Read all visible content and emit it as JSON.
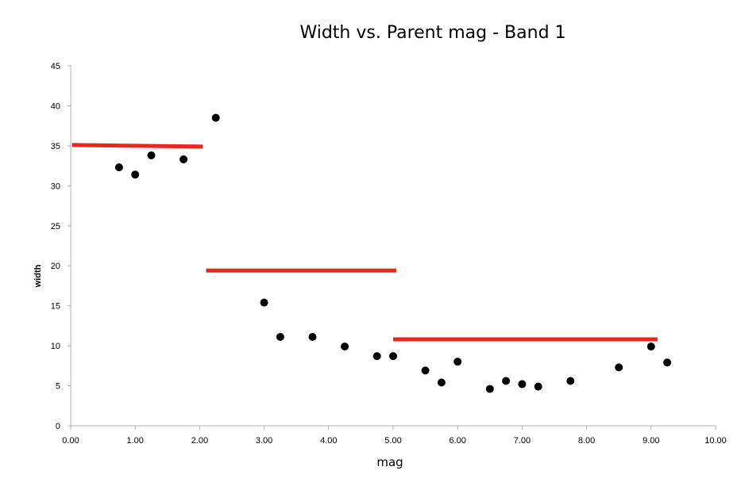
{
  "chart_data": {
    "type": "scatter",
    "title": "Width vs. Parent mag - Band 1",
    "xlabel": "mag",
    "ylabel": "width",
    "xlim": [
      0,
      10
    ],
    "ylim": [
      0,
      45
    ],
    "x_ticks": [
      "0.00",
      "1.00",
      "2.00",
      "3.00",
      "4.00",
      "5.00",
      "6.00",
      "7.00",
      "8.00",
      "9.00",
      "10.00"
    ],
    "y_ticks": [
      "0",
      "5",
      "10",
      "15",
      "20",
      "25",
      "30",
      "35",
      "40",
      "45"
    ],
    "grid": false,
    "legend": "none",
    "point_color": "#000000",
    "line_color": "#e8281e",
    "points": [
      {
        "x": 0.75,
        "y": 32.3
      },
      {
        "x": 1.0,
        "y": 31.4
      },
      {
        "x": 1.25,
        "y": 33.8
      },
      {
        "x": 1.75,
        "y": 33.3
      },
      {
        "x": 2.25,
        "y": 38.5
      },
      {
        "x": 3.0,
        "y": 15.4
      },
      {
        "x": 3.25,
        "y": 11.1
      },
      {
        "x": 3.75,
        "y": 11.1
      },
      {
        "x": 4.25,
        "y": 9.9
      },
      {
        "x": 4.75,
        "y": 8.7
      },
      {
        "x": 5.0,
        "y": 8.7
      },
      {
        "x": 5.5,
        "y": 6.9
      },
      {
        "x": 5.75,
        "y": 5.4
      },
      {
        "x": 6.0,
        "y": 8.0
      },
      {
        "x": 6.5,
        "y": 4.6
      },
      {
        "x": 6.75,
        "y": 5.6
      },
      {
        "x": 7.0,
        "y": 5.2
      },
      {
        "x": 7.25,
        "y": 4.9
      },
      {
        "x": 7.75,
        "y": 5.6
      },
      {
        "x": 8.5,
        "y": 7.3
      },
      {
        "x": 9.0,
        "y": 9.9
      },
      {
        "x": 9.25,
        "y": 7.9
      }
    ],
    "segments": [
      {
        "x1": 0.02,
        "y1": 35.1,
        "x2": 2.05,
        "y2": 34.9
      },
      {
        "x1": 2.1,
        "y1": 19.4,
        "x2": 5.05,
        "y2": 19.4
      },
      {
        "x1": 5.0,
        "y1": 10.8,
        "x2": 9.1,
        "y2": 10.8
      }
    ]
  }
}
